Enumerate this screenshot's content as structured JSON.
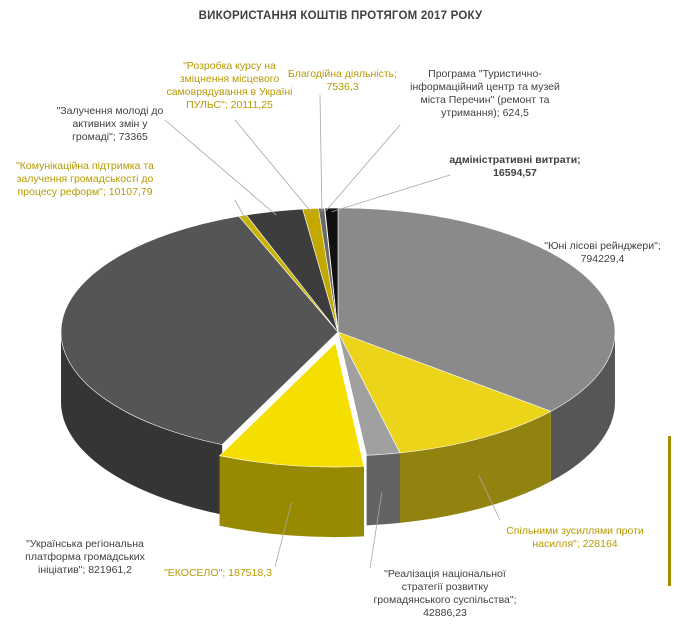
{
  "chart_data": {
    "type": "pie",
    "title": "ВИКОРИСТАННЯ КОШТІВ ПРОТЯГОМ 2017 РОКУ",
    "series": [
      {
        "label": "\"Юні лісові рейнджери\"; 794229,4",
        "value": 794229.4,
        "color": "#8a8a8a"
      },
      {
        "label": "Спільними зусиллями проти насилля\"; 228164",
        "value": 228164,
        "color": "#ecd41a"
      },
      {
        "label": "\"Реалізація національної стратегії розвитку громадянського суспільства\"; 42886,23",
        "value": 42886.23,
        "color": "#a0a0a0"
      },
      {
        "label": "\"ЕКОСЕЛО\"; 187518,3",
        "value": 187518.3,
        "color": "#f5df00"
      },
      {
        "label": "\"Українська регіональна платформа громадських ініціатив\"; 821961,2",
        "value": 821961.2,
        "color": "#555555"
      },
      {
        "label": "\"Комунікаційна підтримка та залучення громадськості до процесу реформ\"; 10107,79",
        "value": 10107.79,
        "color": "#c9b200"
      },
      {
        "label": "\"Залучення молоді до активних змін у громаді\"; 73365",
        "value": 73365,
        "color": "#3d3d3d"
      },
      {
        "label": "\"Розробка курсу на зміцнення місцевого самоврядування в Україні ПУЛЬС\"; 20111,25",
        "value": 20111.25,
        "color": "#c4a800"
      },
      {
        "label": "Благодійна діяльність; 7536,3",
        "value": 7536.3,
        "color": "#686868"
      },
      {
        "label": "Програма \"Туристично-інформаційний центр та музей міста Перечин\" (ремонт та утримання); 624,5",
        "value": 624.5,
        "color": "#b0b0b0"
      },
      {
        "label": "адміністративні витрати; 16594,57",
        "value": 16594.57,
        "color": "#101010"
      }
    ],
    "legend": "none",
    "style": "3d-exploded"
  }
}
